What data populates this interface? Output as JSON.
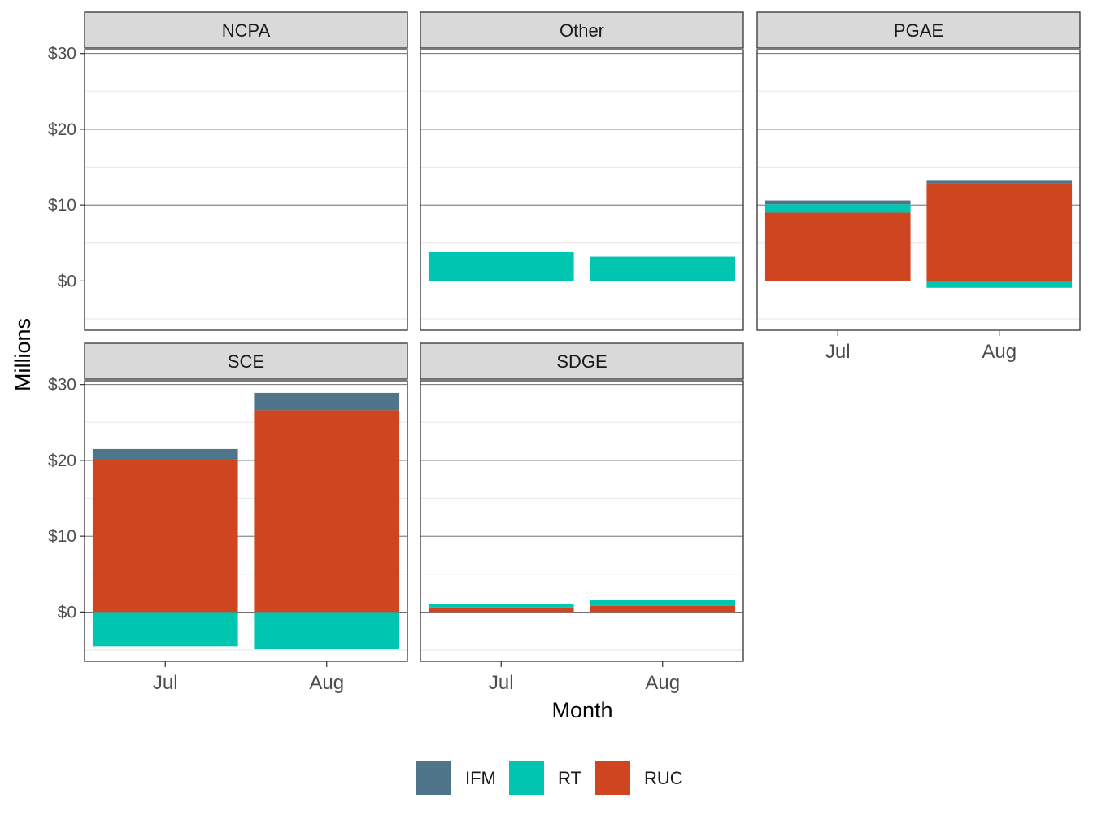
{
  "chart_data": {
    "type": "bar",
    "stacked": true,
    "facet_layout": "3 columns x 2 rows",
    "xlabel": "Month",
    "ylabel": "Millions",
    "categories": [
      "Jul",
      "Aug"
    ],
    "ylim": [
      -6.5,
      30.5
    ],
    "y_ticks": [
      0,
      10,
      20,
      30
    ],
    "y_tick_labels": [
      "$0",
      "$10",
      "$20",
      "$30"
    ],
    "grid": true,
    "legend_position": "bottom",
    "legend": [
      "IFM",
      "RT",
      "RUC"
    ],
    "colors": {
      "IFM": "#4f758a",
      "RT": "#00c5b0",
      "RUC": "#cf4520"
    },
    "panels": [
      {
        "name": "NCPA",
        "series": [
          {
            "name": "IFM",
            "values": [
              0,
              0
            ]
          },
          {
            "name": "RT",
            "values": [
              0,
              0
            ]
          },
          {
            "name": "RUC",
            "values": [
              0,
              0
            ]
          }
        ]
      },
      {
        "name": "Other",
        "series": [
          {
            "name": "IFM",
            "values": [
              0,
              0
            ]
          },
          {
            "name": "RT",
            "values": [
              3.8,
              3.2
            ]
          },
          {
            "name": "RUC",
            "values": [
              0,
              0
            ]
          }
        ]
      },
      {
        "name": "PGAE",
        "series": [
          {
            "name": "IFM",
            "values": [
              0.5,
              0.4
            ]
          },
          {
            "name": "RT",
            "values": [
              1.1,
              -0.9
            ]
          },
          {
            "name": "RUC",
            "values": [
              9.0,
              12.9
            ]
          }
        ]
      },
      {
        "name": "SCE",
        "series": [
          {
            "name": "IFM",
            "values": [
              1.3,
              2.3
            ]
          },
          {
            "name": "RT",
            "values": [
              -4.5,
              -4.9
            ]
          },
          {
            "name": "RUC",
            "values": [
              20.2,
              26.6
            ]
          }
        ]
      },
      {
        "name": "SDGE",
        "series": [
          {
            "name": "IFM",
            "values": [
              0,
              0
            ]
          },
          {
            "name": "RT",
            "values": [
              0.5,
              0.8
            ]
          },
          {
            "name": "RUC",
            "values": [
              0.6,
              0.8
            ]
          }
        ]
      }
    ]
  }
}
